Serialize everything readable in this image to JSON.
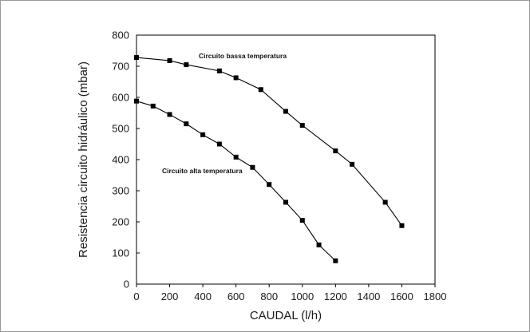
{
  "chart_data": {
    "type": "line",
    "xlabel": "CAUDAL (l/h)",
    "ylabel": "Resistencia circuito hidráulico (mbar)",
    "xlim": [
      0,
      1800
    ],
    "ylim": [
      0,
      800
    ],
    "x_ticks": [
      "0",
      "200",
      "400",
      "600",
      "800",
      "1000",
      "1200",
      "1400",
      "1600",
      "1800"
    ],
    "y_ticks": [
      "0",
      "100",
      "200",
      "300",
      "400",
      "500",
      "600",
      "700",
      "800"
    ],
    "grid": false,
    "legend": "none",
    "marker": "square",
    "line_color": "#000000",
    "series": [
      {
        "name": "Circuito bassa temperatura",
        "x": [
          0,
          200,
          300,
          500,
          600,
          750,
          900,
          1000,
          1200,
          1300,
          1500,
          1600
        ],
        "y": [
          728,
          718,
          705,
          685,
          663,
          625,
          555,
          510,
          428,
          385,
          263,
          188
        ]
      },
      {
        "name": "Circuito alta temperatura",
        "x": [
          0,
          100,
          200,
          300,
          400,
          500,
          600,
          700,
          800,
          900,
          1000,
          1100,
          1200
        ],
        "y": [
          588,
          572,
          545,
          515,
          480,
          450,
          408,
          375,
          320,
          263,
          205,
          126,
          75
        ]
      }
    ]
  }
}
